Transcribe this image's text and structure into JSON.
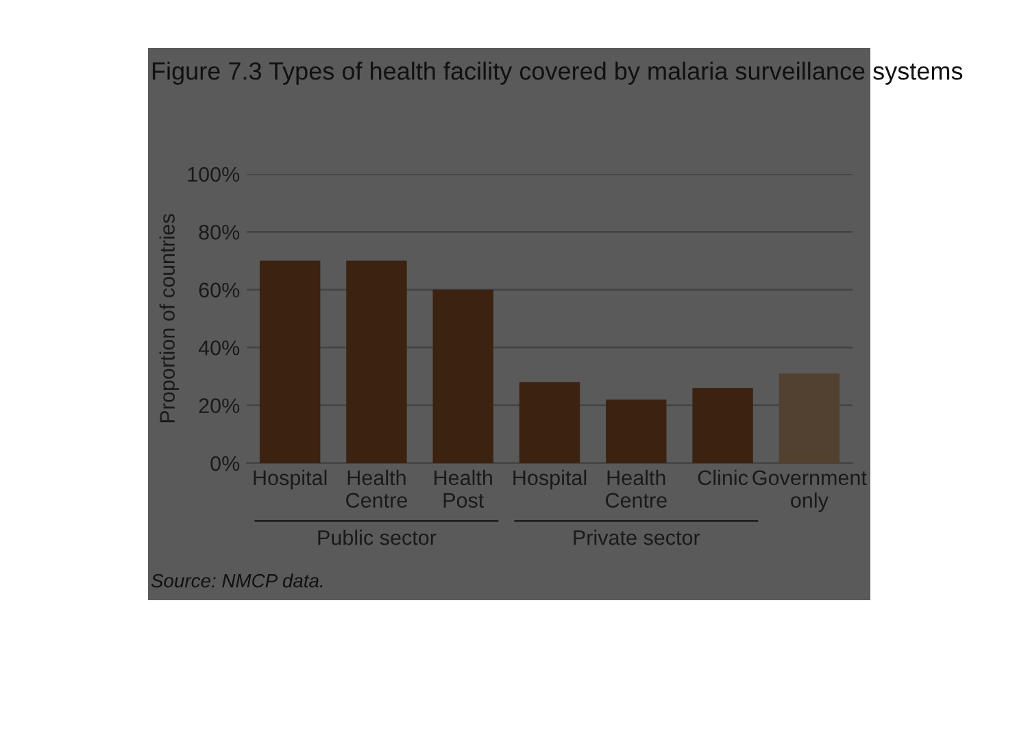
{
  "chart_data": {
    "type": "bar",
    "title": "Figure 7.3 Types of health facility covered by malaria surveillance systems",
    "ylabel": "Proportion of countries",
    "categories": [
      "Hospital",
      "Health\nCentre",
      "Health\nPost",
      "Hospital",
      "Health\nCentre",
      "Clinic",
      "Government\nonly"
    ],
    "values": [
      70,
      70,
      60,
      28,
      22,
      26,
      31
    ],
    "colors": [
      "#3c2210",
      "#3c2210",
      "#3c2210",
      "#3c2210",
      "#3c2210",
      "#3c2210",
      "#524030"
    ],
    "ylim": [
      0,
      100
    ],
    "yticks": [
      {
        "value": 0,
        "label": "0%"
      },
      {
        "value": 20,
        "label": "20%"
      },
      {
        "value": 40,
        "label": "40%"
      },
      {
        "value": 60,
        "label": "60%"
      },
      {
        "value": 80,
        "label": "80%"
      },
      {
        "value": 100,
        "label": "100%"
      }
    ],
    "grid": "y",
    "annotations": [
      "Public sector",
      "Private sector",
      "Source: NMCP data."
    ]
  }
}
